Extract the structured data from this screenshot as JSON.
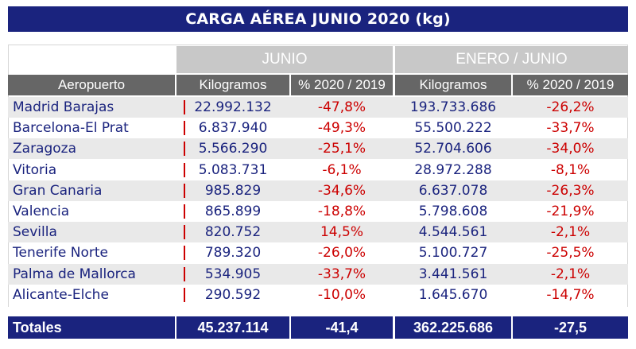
{
  "title": "CARGA AÉREA JUNIO 2020 (kg)",
  "groups": {
    "junio": "JUNIO",
    "enero_junio": "ENERO / JUNIO"
  },
  "headers": {
    "airport": "Aeropuerto",
    "kg_jun": "Kilogramos",
    "pct_jun": "% 2020 / 2019",
    "kg_ytd": "Kilogramos",
    "pct_ytd": "% 2020 / 2019"
  },
  "rows": [
    {
      "airport": "Madrid Barajas",
      "kg_jun": "22.992.132",
      "pct_jun": "-47,8%",
      "kg_ytd": "193.733.686",
      "pct_ytd": "-26,2%"
    },
    {
      "airport": "Barcelona-El Prat",
      "kg_jun": "6.837.940",
      "pct_jun": "-49,3%",
      "kg_ytd": "55.500.222",
      "pct_ytd": "-33,7%"
    },
    {
      "airport": "Zaragoza",
      "kg_jun": "5.566.290",
      "pct_jun": "-25,1%",
      "kg_ytd": "52.704.606",
      "pct_ytd": "-34,0%"
    },
    {
      "airport": "Vitoria",
      "kg_jun": "5.083.731",
      "pct_jun": "-6,1%",
      "kg_ytd": "28.972.288",
      "pct_ytd": "-8,1%"
    },
    {
      "airport": "Gran Canaria",
      "kg_jun": "985.829",
      "pct_jun": "-34,6%",
      "kg_ytd": "6.637.078",
      "pct_ytd": "-26,3%"
    },
    {
      "airport": "Valencia",
      "kg_jun": "865.899",
      "pct_jun": "-18,8%",
      "kg_ytd": "5.798.608",
      "pct_ytd": "-21,9%"
    },
    {
      "airport": "Sevilla",
      "kg_jun": "820.752",
      "pct_jun": "14,5%",
      "kg_ytd": "4.544.561",
      "pct_ytd": "-2,1%"
    },
    {
      "airport": "Tenerife Norte",
      "kg_jun": "789.320",
      "pct_jun": "-26,0%",
      "kg_ytd": "5.100.727",
      "pct_ytd": "-25,5%"
    },
    {
      "airport": "Palma de Mallorca",
      "kg_jun": "534.905",
      "pct_jun": "-33,7%",
      "kg_ytd": "3.441.561",
      "pct_ytd": "-2,1%"
    },
    {
      "airport": "Alicante-Elche",
      "kg_jun": "290.592",
      "pct_jun": "-10,0%",
      "kg_ytd": "1.645.670",
      "pct_ytd": "-14,7%"
    }
  ],
  "totals": {
    "label": "Totales",
    "kg_jun": "45.237.114",
    "pct_jun": "-41,4",
    "kg_ytd": "362.225.686",
    "pct_ytd": "-27,5"
  },
  "colors": {
    "navy": "#1a237e",
    "red": "#cc0000",
    "header_gray": "#666666",
    "group_gray": "#c8c8c8",
    "stripe": "#e9e9e9"
  }
}
